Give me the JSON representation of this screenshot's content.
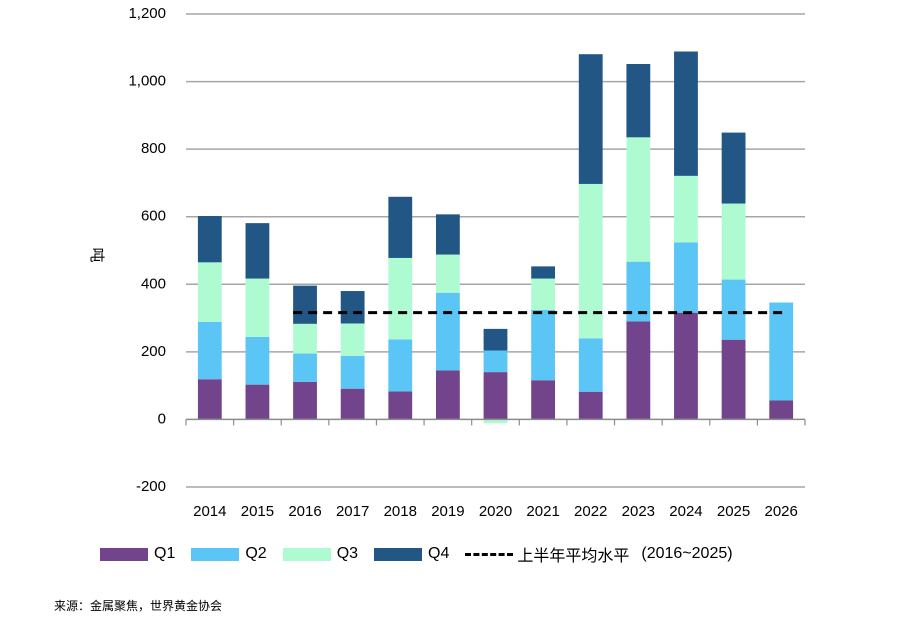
{
  "chart_data": {
    "type": "bar",
    "stacked": true,
    "ylabel": "吨",
    "ylim": [
      -200,
      1200
    ],
    "yticks": [
      -200,
      0,
      200,
      400,
      600,
      800,
      1000,
      1200
    ],
    "ytick_labels": [
      "-200",
      "0",
      "200",
      "400",
      "600",
      "800",
      "1,000",
      "1,200"
    ],
    "grid": true,
    "legend_position": "bottom",
    "categories": [
      "2014",
      "2015",
      "2016",
      "2017",
      "2018",
      "2019",
      "2020",
      "2021",
      "2022",
      "2023",
      "2024",
      "2025",
      "2026"
    ],
    "series": [
      {
        "name": "Q1",
        "color": "#71448b",
        "values": [
          119,
          103,
          111,
          91,
          83,
          145,
          140,
          116,
          82,
          290,
          316,
          236,
          56
        ]
      },
      {
        "name": "Q2",
        "color": "#5bc5f5",
        "values": [
          170,
          141,
          84,
          97,
          154,
          230,
          64,
          208,
          158,
          177,
          208,
          178,
          290
        ]
      },
      {
        "name": "Q3",
        "color": "#aefbd2",
        "values": [
          176,
          173,
          88,
          96,
          241,
          113,
          -11,
          93,
          457,
          368,
          197,
          225,
          0
        ]
      },
      {
        "name": "Q4",
        "color": "#215685",
        "values": [
          137,
          164,
          113,
          96,
          181,
          119,
          64,
          36,
          384,
          217,
          368,
          210,
          0
        ]
      }
    ],
    "reference_line": {
      "name": "上半年平均水平",
      "range_label": "(2016~2025)",
      "value": 316,
      "from_category": "2016",
      "to_category": "2026",
      "style": "dashed",
      "color": "#000000"
    }
  },
  "source_text": "来源：金属聚焦，世界黄金协会"
}
